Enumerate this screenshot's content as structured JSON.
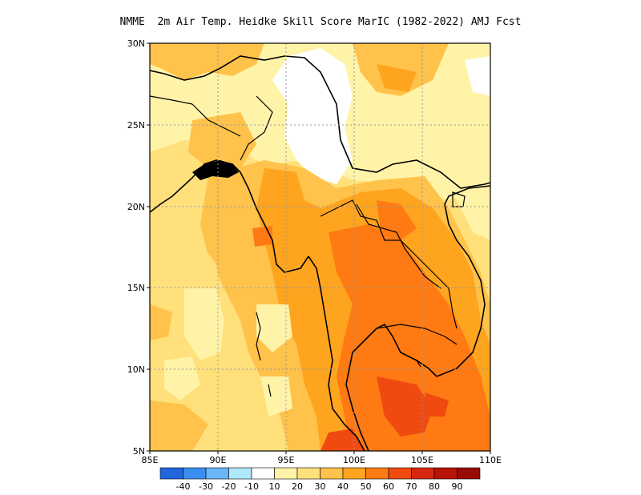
{
  "title": "NMME  2m Air Temp. Heidke Skill Score MarIC (1982-2022) AMJ Fcst",
  "map": {
    "lat_ticks": [
      "30N",
      "25N",
      "20N",
      "15N",
      "10N",
      "5N"
    ],
    "lon_ticks": [
      "85E",
      "90E",
      "95E",
      "100E",
      "105E",
      "110E"
    ],
    "lat_values": [
      30,
      25,
      20,
      15,
      10,
      5
    ],
    "lon_values": [
      85,
      90,
      95,
      100,
      105,
      110
    ],
    "lat_range": [
      5,
      30
    ],
    "lon_range": [
      85,
      110
    ],
    "grid": "dotted",
    "region": "Indochina / Bay of Bengal"
  },
  "colorbar": {
    "labels": [
      "-40",
      "-30",
      "-20",
      "-10",
      "10",
      "20",
      "30",
      "40",
      "50",
      "60",
      "70",
      "80",
      "90"
    ],
    "colors": [
      "#2266dd",
      "#3a8ef0",
      "#6ab4f8",
      "#aee8fa",
      "#ffffff",
      "#fff3a8",
      "#ffe07a",
      "#ffc24a",
      "#ffa41e",
      "#ff7a12",
      "#f04a10",
      "#d62810",
      "#b81408",
      "#980a04"
    ]
  },
  "field_colors": {
    "c10": "#ffffff",
    "c20": "#fff3a8",
    "c30": "#ffe07a",
    "c40": "#ffc24a",
    "c50": "#ffa41e",
    "c60": "#ff7a12",
    "c70": "#f04a10"
  }
}
